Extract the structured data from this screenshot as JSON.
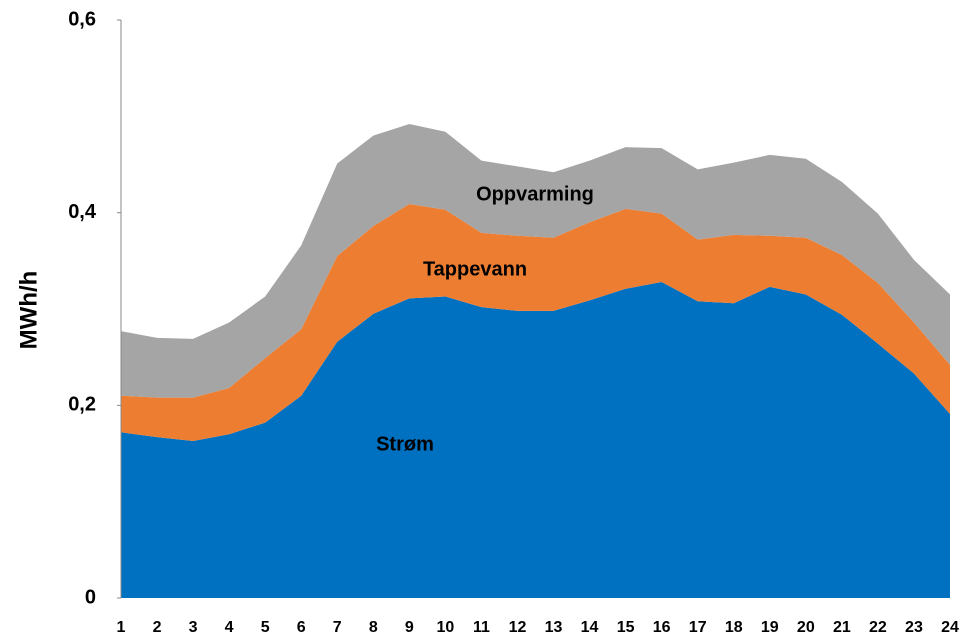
{
  "chart_data": {
    "type": "stacked_area",
    "y_label": "MWh/h",
    "categories": [
      "1",
      "2",
      "3",
      "4",
      "5",
      "6",
      "7",
      "8",
      "9",
      "10",
      "11",
      "12",
      "13",
      "14",
      "15",
      "16",
      "17",
      "18",
      "19",
      "20",
      "21",
      "22",
      "23",
      "24"
    ],
    "series": [
      {
        "name": "Strøm",
        "color": "#0070c0",
        "values": [
          0.172,
          0.167,
          0.163,
          0.17,
          0.182,
          0.21,
          0.266,
          0.295,
          0.311,
          0.313,
          0.302,
          0.298,
          0.298,
          0.309,
          0.321,
          0.328,
          0.308,
          0.306,
          0.323,
          0.315,
          0.294,
          0.264,
          0.233,
          0.191
        ]
      },
      {
        "name": "Tappevann",
        "color": "#ed7d31",
        "values": [
          0.038,
          0.041,
          0.045,
          0.048,
          0.067,
          0.069,
          0.089,
          0.091,
          0.098,
          0.09,
          0.077,
          0.078,
          0.076,
          0.081,
          0.083,
          0.071,
          0.064,
          0.071,
          0.053,
          0.059,
          0.062,
          0.063,
          0.053,
          0.051
        ]
      },
      {
        "name": "Oppvarming",
        "color": "#a5a5a5",
        "values": [
          0.067,
          0.062,
          0.061,
          0.068,
          0.064,
          0.087,
          0.096,
          0.094,
          0.083,
          0.081,
          0.075,
          0.072,
          0.068,
          0.064,
          0.064,
          0.068,
          0.073,
          0.075,
          0.084,
          0.082,
          0.076,
          0.072,
          0.065,
          0.073
        ]
      }
    ],
    "ylim": [
      0,
      0.6
    ],
    "yticks": [
      0,
      {
        "value": 0.2,
        "label": "0,2"
      },
      {
        "value": 0.4,
        "label": "0,4"
      },
      {
        "value": 0.6,
        "label": "0,6"
      }
    ]
  }
}
